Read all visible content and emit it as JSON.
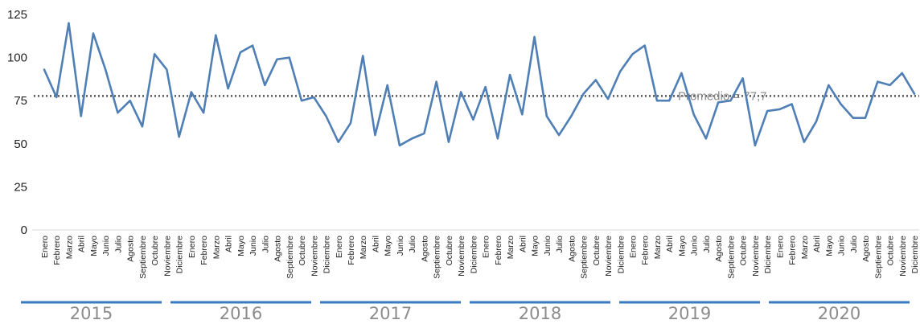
{
  "chart_data": {
    "type": "line",
    "title": "",
    "xlabel": "",
    "ylabel": "",
    "ylim": [
      0,
      125
    ],
    "yticks": [
      0,
      25,
      50,
      75,
      100,
      125
    ],
    "grid": false,
    "years": [
      "2015",
      "2016",
      "2017",
      "2018",
      "2019",
      "2020"
    ],
    "months": [
      "Enero",
      "Febrero",
      "Marzo",
      "Abril",
      "Mayo",
      "Junio",
      "Julio",
      "Agosto",
      "Septiembre",
      "Octubre",
      "Noviembre",
      "Diciembre"
    ],
    "series": [
      {
        "color": "#4f7fb5",
        "values": [
          93,
          77,
          120,
          66,
          114,
          93,
          68,
          75,
          60,
          102,
          93,
          54,
          80,
          68,
          113,
          82,
          103,
          107,
          84,
          99,
          100,
          75,
          77,
          66,
          51,
          62,
          101,
          55,
          84,
          49,
          53,
          56,
          86,
          51,
          80,
          64,
          83,
          53,
          90,
          67,
          112,
          66,
          55,
          66,
          79,
          87,
          76,
          92,
          102,
          107,
          75,
          75,
          91,
          67,
          53,
          74,
          75,
          88,
          49,
          69,
          70,
          73,
          51,
          63,
          84,
          73,
          65,
          65,
          86,
          84,
          91,
          79
        ]
      }
    ],
    "average": {
      "value": 77.7,
      "label": "Promedio = 77,7",
      "style": "dotted",
      "color": "#555555"
    }
  }
}
